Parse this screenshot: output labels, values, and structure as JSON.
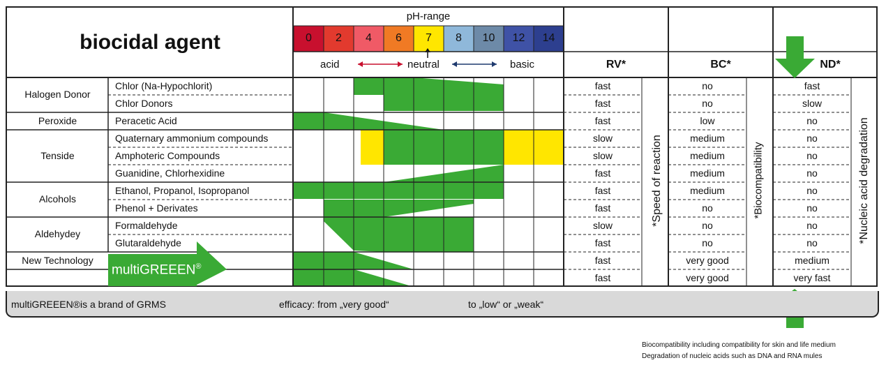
{
  "title": "biocidal agent",
  "ph": {
    "label": "pH-range",
    "ticks": [
      "0",
      "2",
      "4",
      "6",
      "7",
      "8",
      "10",
      "12",
      "14"
    ],
    "colors": [
      "#c8102e",
      "#e23a2e",
      "#f05a66",
      "#f07a24",
      "#ffe600",
      "#8fb8da",
      "#6d8aa8",
      "#3f52a6",
      "#2d3f8f"
    ],
    "acid": "acid",
    "neutral": "neutral",
    "basic": "basic"
  },
  "columns": {
    "rv": "RV*",
    "bc": "BC*",
    "nd": "ND*",
    "rv_vertical": "*Speed of reaction",
    "bc_vertical": "*Biocompatibility",
    "nd_vertical": "*Nucleic acid degradation"
  },
  "groups": [
    {
      "name": "Halogen Donor",
      "rows": [
        0,
        1
      ]
    },
    {
      "name": "Peroxide",
      "rows": [
        2
      ]
    },
    {
      "name": "Tenside",
      "rows": [
        3,
        4,
        5
      ]
    },
    {
      "name": "Alcohols",
      "rows": [
        6,
        7
      ]
    },
    {
      "name": "Aldehydey",
      "rows": [
        8,
        9
      ]
    },
    {
      "name": "New Technology",
      "rows": [
        10
      ]
    }
  ],
  "rows": [
    {
      "agent": "Chlor (Na-Hypochlorit)",
      "rv": "fast",
      "bc": "no",
      "nd": "fast"
    },
    {
      "agent": "Chlor Donors",
      "rv": "fast",
      "bc": "no",
      "nd": "slow"
    },
    {
      "agent": "Peracetic Acid",
      "rv": "fast",
      "bc": "low",
      "nd": "no"
    },
    {
      "agent": "Quaternary ammonium compounds",
      "rv": "slow",
      "bc": "medium",
      "nd": "no"
    },
    {
      "agent": "Amphoteric Compounds",
      "rv": "slow",
      "bc": "medium",
      "nd": "no"
    },
    {
      "agent": "Guanidine, Chlorhexidine",
      "rv": "fast",
      "bc": "medium",
      "nd": "no"
    },
    {
      "agent": "Ethanol, Propanol, Isopropanol",
      "rv": "fast",
      "bc": "medium",
      "nd": "no"
    },
    {
      "agent": "Phenol + Derivates",
      "rv": "fast",
      "bc": "no",
      "nd": "no"
    },
    {
      "agent": "Formaldehyde",
      "rv": "slow",
      "bc": "no",
      "nd": "no"
    },
    {
      "agent": "Glutaraldehyde",
      "rv": "fast",
      "bc": "no",
      "nd": "no"
    },
    {
      "agent": "",
      "rv": "fast",
      "bc": "very good",
      "nd": "medium"
    },
    {
      "agent": "",
      "rv": "fast",
      "bc": "very good",
      "nd": "very fast"
    }
  ],
  "multigreen": "multiGREEEN",
  "registered": "®",
  "footer": {
    "brand": "multiGREEEN®is a brand of GRMS",
    "efficacy_from": "efficacy: from „very good“",
    "efficacy_to": "to „low“ or „weak“"
  },
  "notes": [
    "Biocompatibility including compatibility for skin and life medium",
    "Degradation of nucleic acids such as DNA and RNA mules"
  ],
  "colors": {
    "green": "#3aaa35",
    "yellow": "#ffe600",
    "line": "#222222",
    "footer": "#d9d9d9"
  }
}
